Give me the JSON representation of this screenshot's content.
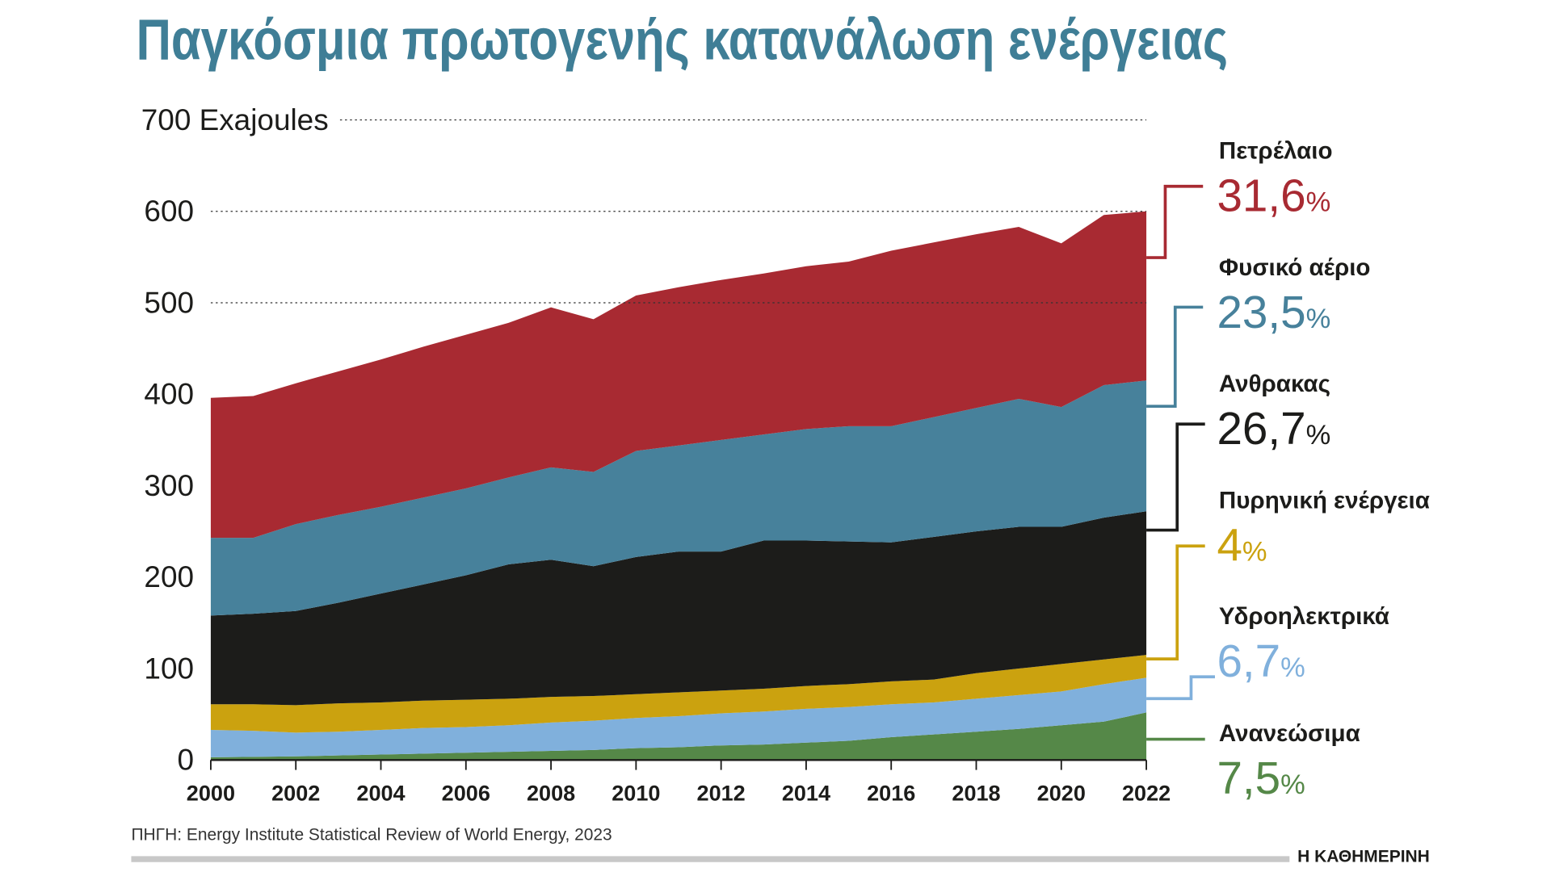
{
  "title": "Παγκόσμια πρωτογενής κατανάλωση ενέργειας",
  "source": "ΠΗΓΗ: Energy Institute Statistical Review of World Energy, 2023",
  "brand": "Η ΚΑΘΗΜΕΡΙΝΗ",
  "title_color": "#3f7e96",
  "chart_data": {
    "type": "area",
    "stacked": true,
    "title": "Παγκόσμια πρωτογενής κατανάλωση ενέργειας",
    "ylabel": "Exajoules",
    "y_unit_label": "700 Exajoules",
    "ylim": [
      0,
      700
    ],
    "yticks": [
      "0",
      "100",
      "200",
      "300",
      "400",
      "500",
      "600"
    ],
    "xticks": [
      "2000",
      "2002",
      "2004",
      "2006",
      "2008",
      "2010",
      "2012",
      "2014",
      "2016",
      "2018",
      "2020",
      "2022"
    ],
    "x": [
      2000,
      2001,
      2002,
      2003,
      2004,
      2005,
      2006,
      2007,
      2008,
      2009,
      2010,
      2011,
      2012,
      2013,
      2014,
      2015,
      2016,
      2017,
      2018,
      2019,
      2020,
      2021,
      2022
    ],
    "grid": "horizontal-dotted",
    "series": [
      {
        "name": "Ανανεώσιμα",
        "share_2022": "7,5",
        "color": "#558848",
        "values": [
          3,
          3.5,
          4,
          5,
          6,
          7,
          8,
          9,
          10,
          11,
          13,
          14,
          16,
          17,
          19,
          21,
          25,
          28,
          31,
          34,
          38,
          42,
          52
        ]
      },
      {
        "name": "Υδροηλεκτρικά",
        "label": "Υδροηλεκτρικά",
        "share_2022": "6,7",
        "color": "#80b0dc",
        "values": [
          30,
          28.5,
          26,
          26,
          27,
          28,
          28,
          29,
          31,
          32,
          33,
          34,
          35,
          36,
          37,
          37,
          36,
          35,
          36,
          37,
          37,
          41,
          38
        ]
      },
      {
        "name": "Πυρηνική ενέργεια",
        "share_2022": "4",
        "color": "#cba20f",
        "values": [
          28,
          29,
          30,
          31,
          30,
          30,
          30,
          29,
          28,
          27,
          26,
          26,
          25,
          25,
          25,
          25,
          25,
          25,
          28,
          29,
          30,
          27,
          25
        ]
      },
      {
        "name": "Ανθρακας",
        "share_2022": "26,7",
        "color": "#1c1c1a",
        "values": [
          97,
          99,
          103,
          110,
          119,
          127,
          136,
          147,
          150,
          142,
          150,
          154,
          152,
          162,
          159,
          156,
          152,
          156,
          155,
          155,
          150,
          155,
          157
        ]
      },
      {
        "name": "Φυσικό αέριο",
        "share_2022": "23,5",
        "color": "#47819b",
        "values": [
          85,
          83,
          95,
          96,
          95,
          95,
          95,
          95,
          101,
          103,
          116,
          116,
          122,
          116,
          122,
          126,
          127,
          131,
          135,
          140,
          131,
          145,
          143
        ]
      },
      {
        "name": "Πετρέλαιο",
        "share_2022": "31,6",
        "color": "#a82a32",
        "values": [
          153,
          155,
          154,
          157,
          161,
          165,
          168,
          169,
          175,
          167,
          170,
          173,
          175,
          176,
          178,
          180,
          192,
          191,
          190,
          188,
          179,
          186,
          185
        ]
      }
    ],
    "legend": [
      {
        "name": "Πετρέλαιο",
        "pct": "31,6",
        "color": "#a82a32"
      },
      {
        "name": "Φυσικό αέριο",
        "pct": "23,5",
        "color": "#47819b"
      },
      {
        "name": "Ανθρακας",
        "pct": "26,7",
        "color": "#1c1c1a"
      },
      {
        "name": "Πυρηνική ενέργεια",
        "pct": "4",
        "color": "#cba20f"
      },
      {
        "name": "Υδροηλεκτρικά",
        "pct": "6,7",
        "color": "#80b0dc"
      },
      {
        "name": "Ανανεώσιμα",
        "pct": "7,5",
        "color": "#558848"
      }
    ],
    "percent_sign": "%"
  }
}
